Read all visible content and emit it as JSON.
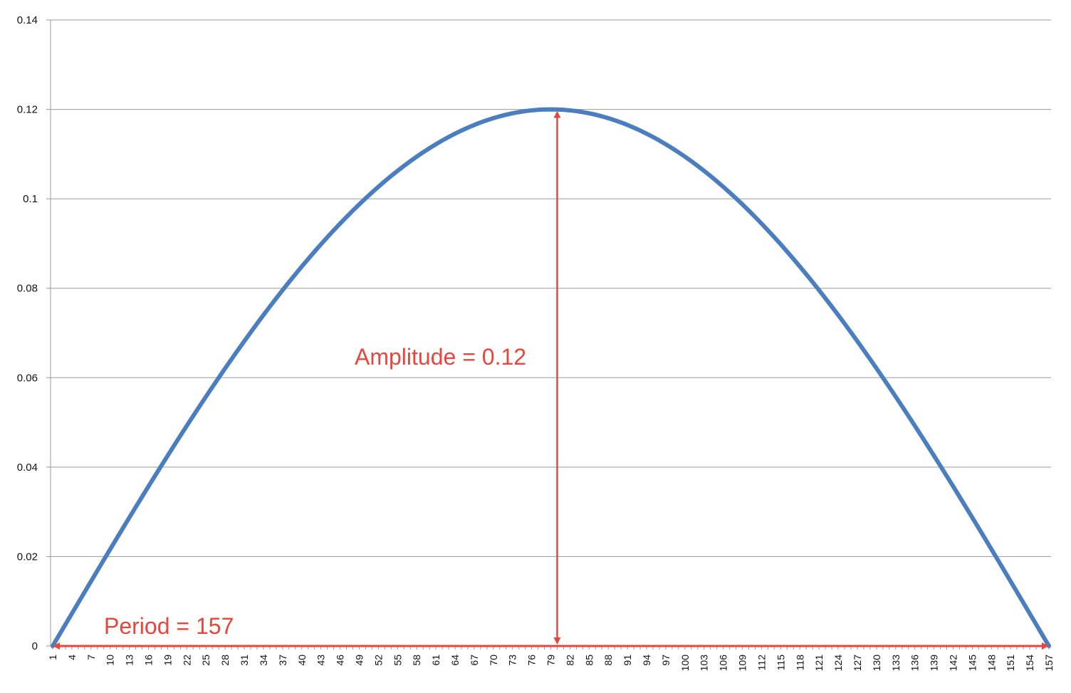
{
  "chart_data": {
    "type": "line",
    "title": "",
    "xlabel": "",
    "ylabel": "",
    "x_range": [
      1,
      157
    ],
    "ylim": [
      0,
      0.14
    ],
    "y_ticks": [
      "0",
      "0.02",
      "0.04",
      "0.06",
      "0.08",
      "0.1",
      "0.12",
      "0.14"
    ],
    "x_tick_step": 3,
    "grid": "horizontal",
    "legend": "none",
    "series": [
      {
        "color": "#4a7ebf",
        "formula": "y = 0.12 * sin(pi * (x - 1) / 156)",
        "x": [
          1,
          10,
          20,
          30,
          40,
          50,
          60,
          70,
          79,
          90,
          100,
          110,
          120,
          130,
          140,
          150,
          157
        ],
        "values": [
          0,
          0.0216,
          0.0436,
          0.063,
          0.0825,
          0.0998,
          0.1116,
          0.1185,
          0.12,
          0.1175,
          0.108,
          0.0968,
          0.0816,
          0.0632,
          0.0415,
          0.018,
          0
        ]
      }
    ],
    "annotations": {
      "amplitude_label": "Amplitude = 0.12",
      "period_label": "Period = 157",
      "amplitude_arrow": {
        "x": 80,
        "y_from": 0,
        "y_to": 0.12
      },
      "period_arrow": {
        "y": 0,
        "x_from": 1,
        "x_to": 157
      },
      "color": "#e8453c"
    }
  }
}
